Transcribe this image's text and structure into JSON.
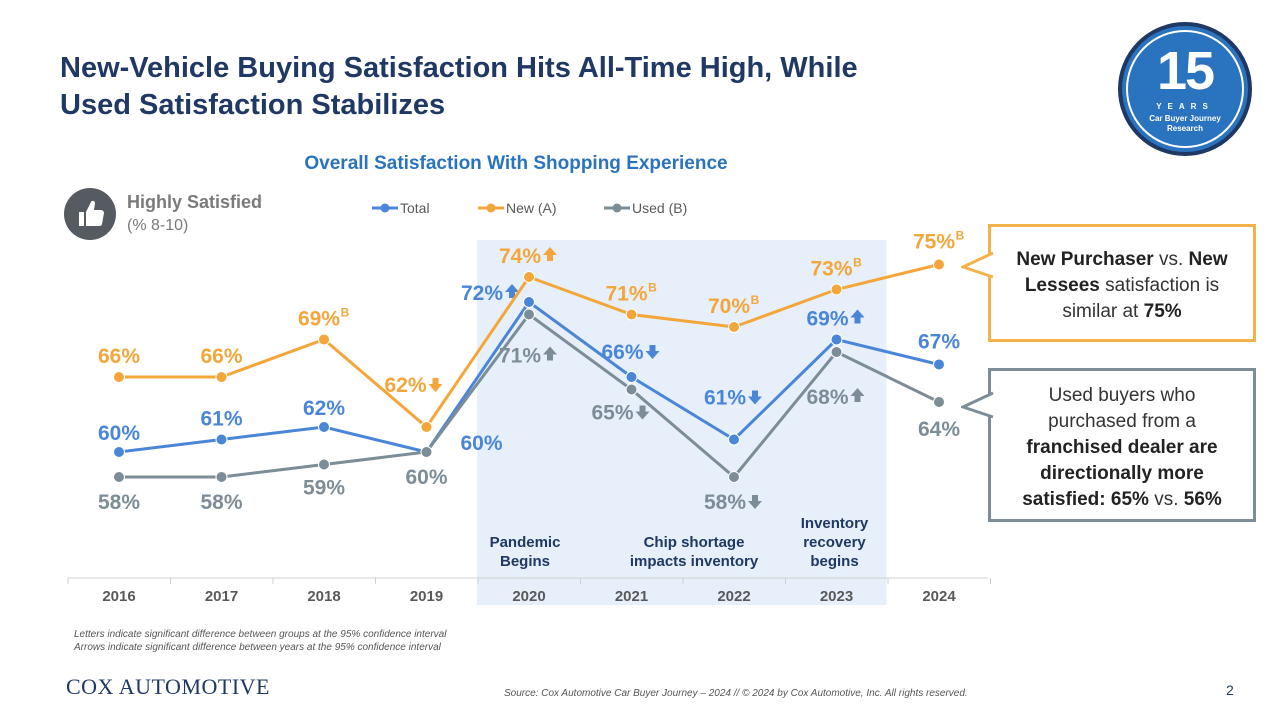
{
  "headline": {
    "line1": "New-Vehicle Buying Satisfaction Hits All-Time High, While",
    "line2": "Used Satisfaction Stabilizes"
  },
  "badge": {
    "number": "15",
    "years": "YEARS",
    "line1": "Car Buyer Journey",
    "line2": "Research"
  },
  "colors": {
    "total": "#4a86d8",
    "new": "#f4a63a",
    "used": "#7d8d97",
    "shade": "#e6effa",
    "title": "#1f3864"
  },
  "chart_data": {
    "type": "line",
    "title": "Overall Satisfaction With Shopping Experience",
    "metric_label": "Highly Satisfied",
    "metric_sub": "(% 8-10)",
    "categories": [
      "2016",
      "2017",
      "2018",
      "2019",
      "2020",
      "2021",
      "2022",
      "2023",
      "2024"
    ],
    "ylim": [
      50,
      80
    ],
    "legend_position": "top",
    "series": [
      {
        "key": "total",
        "name": "Total",
        "values": [
          60,
          61,
          62,
          60,
          72,
          66,
          61,
          69,
          67
        ],
        "labels": [
          "60%",
          "61%",
          "62%",
          "60%",
          "72%",
          "66%",
          "61%",
          "69%",
          "67%"
        ],
        "sup": [
          "",
          "",
          "",
          "",
          "",
          "",
          "",
          "",
          ""
        ],
        "arrows": [
          "",
          "",
          "",
          "",
          "up",
          "down",
          "down",
          "up",
          ""
        ]
      },
      {
        "key": "new",
        "name": "New (A)",
        "values": [
          66,
          66,
          69,
          62,
          74,
          71,
          70,
          73,
          75
        ],
        "labels": [
          "66%",
          "66%",
          "69%",
          "62%",
          "74%",
          "71%",
          "70%",
          "73%",
          "75%"
        ],
        "sup": [
          "",
          "",
          "B",
          "",
          "",
          "B",
          "B",
          "B",
          "B"
        ],
        "arrows": [
          "",
          "",
          "",
          "down",
          "up",
          "",
          "",
          "",
          ""
        ]
      },
      {
        "key": "used",
        "name": "Used (B)",
        "values": [
          58,
          58,
          59,
          60,
          71,
          65,
          58,
          68,
          64
        ],
        "labels": [
          "58%",
          "58%",
          "59%",
          "60%",
          "71%",
          "65%",
          "58%",
          "68%",
          "64%"
        ],
        "sup": [
          "",
          "",
          "",
          "",
          "",
          "",
          "",
          "",
          ""
        ],
        "arrows": [
          "",
          "",
          "",
          "",
          "up",
          "down",
          "down",
          "up",
          ""
        ]
      }
    ],
    "annotations": [
      {
        "category": "2020",
        "lines": [
          "Pandemic",
          "Begins"
        ]
      },
      {
        "category": "2022",
        "lines": [
          "Chip shortage",
          "impacts inventory"
        ]
      },
      {
        "category": "2023",
        "lines": [
          "Inventory",
          "recovery",
          "begins"
        ]
      }
    ],
    "shaded_range": [
      "2020",
      "2023"
    ]
  },
  "callouts": {
    "new": {
      "l1a": "New Purchaser",
      "l1b": " vs. ",
      "l1c": "New",
      "l2a": "Lessees",
      "l2b": " satisfaction is",
      "l3a": "similar at ",
      "l3b": "75%"
    },
    "used": {
      "l1": "Used buyers who",
      "l2": "purchased from a",
      "l3": "franchised dealer are",
      "l4": "directionally more",
      "l5a": "satisfied: 65%",
      "l5b": " vs. ",
      "l5c": "56%"
    }
  },
  "notes": {
    "line1": "Letters indicate significant difference between groups at the 95% confidence interval",
    "line2": "Arrows indicate significant difference between years at the 95% confidence interval"
  },
  "footer": {
    "logo": "COX AUTOMOTIVE",
    "source": "Source: Cox Automotive Car Buyer Journey – 2024 // © 2024 by Cox Automotive, Inc. All rights reserved.",
    "page": "2"
  }
}
